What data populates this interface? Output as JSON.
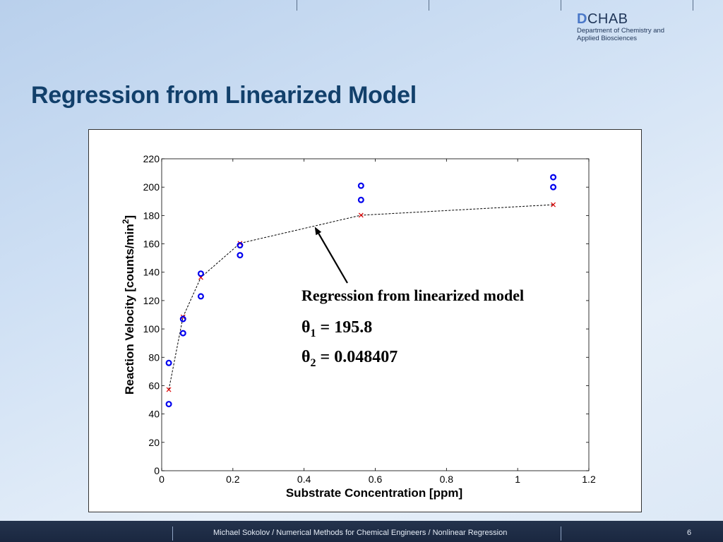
{
  "header": {
    "logo_initial": "D",
    "logo_rest": "CHAB",
    "logo_line1": "Department of Chemistry and",
    "logo_line2": "Applied Biosciences"
  },
  "slide": {
    "title": "Regression from Linearized Model"
  },
  "footer": {
    "text": "Michael Sokolov / Numerical Methods for Chemical Engineers / Nonlinear Regression",
    "page_number": "6"
  },
  "colors": {
    "observed": "#0000ee",
    "fitted": "#dd0000",
    "line": "#000000",
    "title": "#12406b"
  },
  "chart_data": {
    "type": "scatter",
    "title": "",
    "xlabel": "Substrate Concentration [ppm]",
    "ylabel": "Reaction Velocity [counts/min",
    "ylabel_sup": "2",
    "ylabel_end": "]",
    "xlim": [
      0,
      1.2
    ],
    "ylim": [
      0,
      220
    ],
    "xticks": [
      0,
      0.2,
      0.4,
      0.6,
      0.8,
      1,
      1.2
    ],
    "xtick_labels": [
      "0",
      "0.2",
      "0.4",
      "0.6",
      "0.8",
      "1",
      "1.2"
    ],
    "yticks": [
      0,
      20,
      40,
      60,
      80,
      100,
      120,
      140,
      160,
      180,
      200,
      220
    ],
    "ytick_labels": [
      "0",
      "20",
      "40",
      "60",
      "80",
      "100",
      "120",
      "140",
      "160",
      "180",
      "200",
      "220"
    ],
    "grid": false,
    "series": [
      {
        "marker": "circle",
        "x": [
          0.02,
          0.02,
          0.06,
          0.06,
          0.11,
          0.11,
          0.22,
          0.22,
          0.56,
          0.56,
          1.1,
          1.1
        ],
        "y": [
          76,
          47,
          97,
          107,
          123,
          139,
          159,
          152,
          191,
          201,
          207,
          200
        ]
      },
      {
        "marker": "x",
        "line": "dashed",
        "x": [
          0.02,
          0.06,
          0.11,
          0.22,
          0.56,
          1.1
        ],
        "y": [
          57.2,
          108.5,
          136.3,
          160.4,
          180.2,
          187.6
        ]
      }
    ],
    "annotation": {
      "text": "Regression from linearized model",
      "theta1_label": "θ",
      "theta1_sub": "1",
      "theta1_value": " = 195.8",
      "theta2_label": "θ",
      "theta2_sub": "2",
      "theta2_value": " = 0.048407",
      "arrow_target": [
        0.43,
        172
      ]
    }
  }
}
